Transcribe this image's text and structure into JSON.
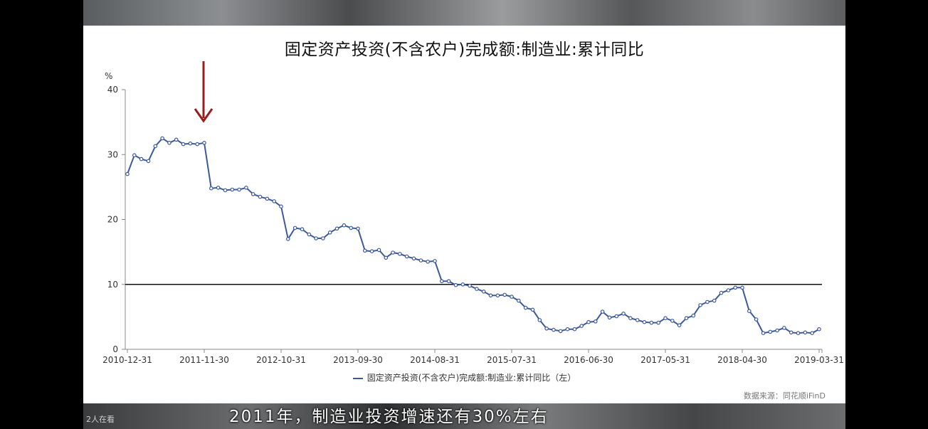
{
  "video": {
    "subtitle": "2011年，制造业投资增速还有30%左右",
    "viewers": "2人在看"
  },
  "chart_data": {
    "type": "line",
    "title": "固定资产投资(不含农户)完成额:制造业:累计同比",
    "ylabel": "%",
    "ylim": [
      0,
      40
    ],
    "yticks": [
      "0",
      "10",
      "20",
      "30",
      "40"
    ],
    "x_tick_labels": [
      "2010-12-31",
      "2011-11-30",
      "2012-10-31",
      "2013-09-30",
      "2014-08-31",
      "2015-07-31",
      "2016-06-30",
      "2017-05-31",
      "2018-04-30",
      "2019-03-31"
    ],
    "reference_line": 10,
    "annotation": "red-down-arrow",
    "legend": "固定资产投资(不含农户)完成额:制造业:累计同比（左）",
    "source": "数据来源：同花顺iFinD",
    "colors": {
      "line": "#3d5a98",
      "arrow": "#9b1c1c",
      "reference": "#111111"
    },
    "series": [
      {
        "name": "固定资产投资(不含农户)完成额:制造业:累计同比（左）",
        "values": [
          27.0,
          29.9,
          29.3,
          29.0,
          31.3,
          32.5,
          31.8,
          32.3,
          31.6,
          31.7,
          31.6,
          31.8,
          24.8,
          24.9,
          24.5,
          24.6,
          24.6,
          24.9,
          23.9,
          23.5,
          23.2,
          22.8,
          22.0,
          17.0,
          18.7,
          18.5,
          17.7,
          17.1,
          17.1,
          18.0,
          18.6,
          19.1,
          18.7,
          18.6,
          15.2,
          15.1,
          15.3,
          14.1,
          14.9,
          14.7,
          14.3,
          14.0,
          13.7,
          13.5,
          13.6,
          10.5,
          10.5,
          9.9,
          10.0,
          9.8,
          9.3,
          8.9,
          8.3,
          8.3,
          8.4,
          8.1,
          7.5,
          6.4,
          6.1,
          4.5,
          3.2,
          3.0,
          2.8,
          3.1,
          3.1,
          3.6,
          4.2,
          4.3,
          5.8,
          4.9,
          5.1,
          5.5,
          4.8,
          4.5,
          4.2,
          4.1,
          4.1,
          4.8,
          4.4,
          3.7,
          4.8,
          5.2,
          6.8,
          7.3,
          7.5,
          8.7,
          9.1,
          9.5,
          9.5,
          5.9,
          4.6,
          2.5,
          2.7,
          2.9,
          3.3,
          2.6,
          2.5,
          2.6,
          2.5,
          3.1
        ]
      }
    ]
  }
}
